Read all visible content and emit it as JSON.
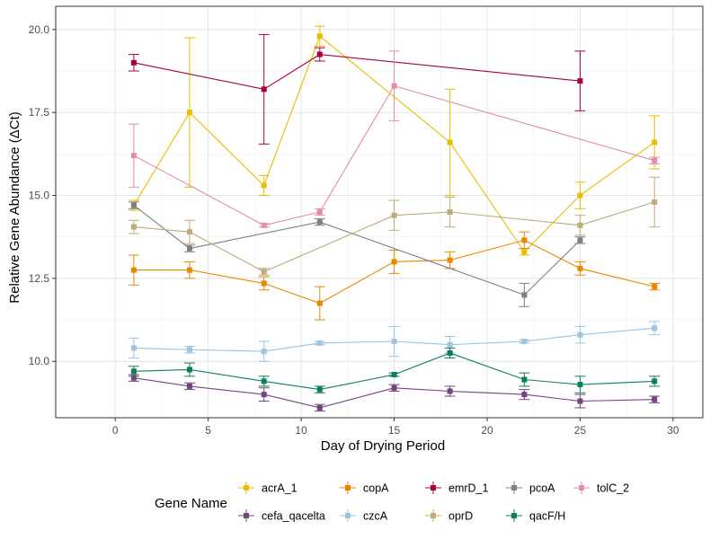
{
  "chart_data": {
    "type": "line",
    "xlabel": "Day of Drying Period",
    "ylabel": "Relative Gene Abundance (ΔCt)",
    "xlim": [
      -3.2,
      31.6
    ],
    "ylim": [
      8.3,
      20.7
    ],
    "xticks": [
      0,
      5,
      10,
      15,
      20,
      25,
      30
    ],
    "yticks": [
      10.0,
      12.5,
      15.0,
      17.5,
      20.0
    ],
    "ytick_labels": [
      "10.0",
      "12.5",
      "15.0",
      "17.5",
      "20.0"
    ],
    "grid": true,
    "legend": {
      "title": "Gene Name",
      "placement": "bottom",
      "rows": [
        [
          "acrA_1",
          "copA",
          "emrD_1",
          "pcoA",
          "tolC_2"
        ],
        [
          "cefa_qacelta",
          "czcA",
          "oprD",
          "qacF/H"
        ]
      ]
    },
    "series": [
      {
        "name": "acrA_1",
        "color": "#E6C000",
        "points": [
          [
            1,
            14.7
          ],
          [
            4,
            17.5
          ],
          [
            8,
            15.3
          ],
          [
            11,
            19.8
          ],
          [
            18,
            16.6
          ],
          [
            22,
            13.3
          ],
          [
            25,
            15.0
          ],
          [
            29,
            16.6
          ]
        ],
        "err": [
          0.15,
          2.25,
          0.3,
          0.3,
          1.6,
          0.1,
          0.4,
          0.8
        ]
      },
      {
        "name": "copA",
        "color": "#E98800",
        "points": [
          [
            1,
            12.75
          ],
          [
            4,
            12.75
          ],
          [
            8,
            12.35
          ],
          [
            11,
            11.75
          ],
          [
            15,
            13.0
          ],
          [
            18,
            13.05
          ],
          [
            22,
            13.65
          ],
          [
            25,
            12.8
          ],
          [
            29,
            12.25
          ]
        ],
        "err": [
          0.45,
          0.25,
          0.2,
          0.5,
          0.35,
          0.25,
          0.25,
          0.2,
          0.1
        ]
      },
      {
        "name": "emrD_1",
        "color": "#A8003C",
        "points": [
          [
            1,
            19.0
          ],
          [
            8,
            18.2
          ],
          [
            11,
            19.25
          ],
          [
            25,
            18.45
          ]
        ],
        "err": [
          0.25,
          1.65,
          0.2,
          0.9
        ]
      },
      {
        "name": "pcoA",
        "color": "#7F7F7F",
        "points": [
          [
            1,
            14.7
          ],
          [
            4,
            13.4
          ],
          [
            11,
            14.2
          ],
          [
            22,
            12.0
          ],
          [
            25,
            13.65
          ]
        ],
        "err": [
          0.1,
          0.1,
          0.1,
          0.35,
          0.1
        ]
      },
      {
        "name": "tolC_2",
        "color": "#E58DA6",
        "points": [
          [
            1,
            16.2
          ],
          [
            8,
            14.1
          ],
          [
            11,
            14.5
          ],
          [
            15,
            18.3
          ],
          [
            29,
            16.05
          ]
        ],
        "err": [
          0.95,
          0.05,
          0.1,
          1.05,
          0.1
        ]
      },
      {
        "name": "cefa_qacelta",
        "color": "#74447E",
        "points": [
          [
            1,
            9.5
          ],
          [
            4,
            9.25
          ],
          [
            8,
            9.0
          ],
          [
            11,
            8.6
          ],
          [
            15,
            9.2
          ],
          [
            18,
            9.1
          ],
          [
            22,
            9.0
          ],
          [
            25,
            8.8
          ],
          [
            29,
            8.85
          ]
        ],
        "err": [
          0.1,
          0.1,
          0.2,
          0.1,
          0.1,
          0.15,
          0.15,
          0.2,
          0.1
        ]
      },
      {
        "name": "czcA",
        "color": "#9CC3E0",
        "points": [
          [
            1,
            10.4
          ],
          [
            4,
            10.35
          ],
          [
            8,
            10.3
          ],
          [
            11,
            10.55
          ],
          [
            15,
            10.6
          ],
          [
            18,
            10.5
          ],
          [
            22,
            10.6
          ],
          [
            25,
            10.8
          ],
          [
            29,
            11.0
          ]
        ],
        "err": [
          0.3,
          0.1,
          0.3,
          0.05,
          0.45,
          0.25,
          0.05,
          0.25,
          0.2
        ]
      },
      {
        "name": "oprD",
        "color": "#BFAA7A",
        "points": [
          [
            1,
            14.05
          ],
          [
            4,
            13.9
          ],
          [
            8,
            12.7
          ],
          [
            15,
            14.4
          ],
          [
            18,
            14.5
          ],
          [
            25,
            14.1
          ],
          [
            29,
            14.8
          ]
        ],
        "err": [
          0.2,
          0.35,
          0.1,
          0.45,
          0.45,
          0.3,
          0.75
        ]
      },
      {
        "name": "qacF/H",
        "color": "#0E7E58",
        "points": [
          [
            1,
            9.7
          ],
          [
            4,
            9.75
          ],
          [
            8,
            9.4
          ],
          [
            11,
            9.15
          ],
          [
            15,
            9.6
          ],
          [
            18,
            10.25
          ],
          [
            22,
            9.45
          ],
          [
            25,
            9.3
          ],
          [
            29,
            9.4
          ]
        ],
        "err": [
          0.15,
          0.2,
          0.15,
          0.1,
          0.05,
          0.15,
          0.2,
          0.25,
          0.15
        ]
      }
    ]
  }
}
